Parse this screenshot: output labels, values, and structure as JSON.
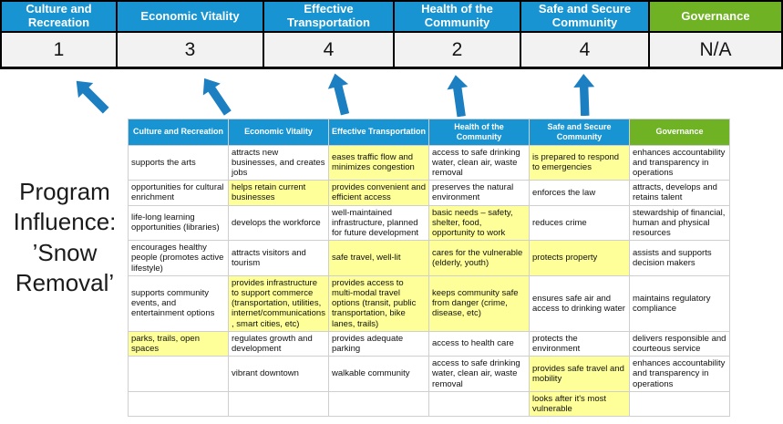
{
  "slide": {
    "title_lines": [
      "Program",
      "Influence:",
      "’Snow",
      "Removal’"
    ]
  },
  "scoreboard": {
    "columns": [
      {
        "label": "Culture and Recreation",
        "score": "1"
      },
      {
        "label": "Economic Vitality",
        "score": "3"
      },
      {
        "label": "Effective Transportation",
        "score": "4"
      },
      {
        "label": "Health of the Community",
        "score": "2"
      },
      {
        "label": "Safe and Secure Community",
        "score": "4"
      },
      {
        "label": "Governance",
        "score": "N/A"
      }
    ]
  },
  "matrix": {
    "headers": [
      "Culture and Recreation",
      "Economic Vitality",
      "Effective Transportation",
      "Health of the Community",
      "Safe and Secure Community",
      "Governance"
    ],
    "rows": [
      [
        {
          "text": "supports the arts",
          "highlight": false
        },
        {
          "text": "attracts new businesses, and creates jobs",
          "highlight": false
        },
        {
          "text": "eases traffic flow and minimizes congestion",
          "highlight": true
        },
        {
          "text": "access to safe drinking water, clean air, waste removal",
          "highlight": false
        },
        {
          "text": "is prepared to respond to emergencies",
          "highlight": true
        },
        {
          "text": "enhances accountability and transparency in operations",
          "highlight": false
        }
      ],
      [
        {
          "text": "opportunities for cultural enrichment",
          "highlight": false
        },
        {
          "text": "helps retain current businesses",
          "highlight": true
        },
        {
          "text": "provides convenient and efficient access",
          "highlight": true
        },
        {
          "text": "preserves the natural environment",
          "highlight": false
        },
        {
          "text": "enforces the law",
          "highlight": false
        },
        {
          "text": "attracts, develops and retains talent",
          "highlight": false
        }
      ],
      [
        {
          "text": "life-long learning opportunities (libraries)",
          "highlight": false
        },
        {
          "text": "develops the workforce",
          "highlight": false
        },
        {
          "text": "well-maintained infrastructure, planned for future development",
          "highlight": false
        },
        {
          "text": "basic needs – safety, shelter, food, opportunity to work",
          "highlight": true
        },
        {
          "text": "reduces crime",
          "highlight": false
        },
        {
          "text": "stewardship of financial, human and physical resources",
          "highlight": false
        }
      ],
      [
        {
          "text": "encourages healthy people (promotes active lifestyle)",
          "highlight": false
        },
        {
          "text": "attracts visitors and tourism",
          "highlight": false
        },
        {
          "text": "safe travel, well-lit",
          "highlight": true
        },
        {
          "text": "cares for the vulnerable (elderly, youth)",
          "highlight": true
        },
        {
          "text": "protects property",
          "highlight": true
        },
        {
          "text": "assists and supports decision makers",
          "highlight": false
        }
      ],
      [
        {
          "text": "supports community events, and entertainment options",
          "highlight": false
        },
        {
          "text": "provides infrastructure to support commerce (transportation, utilities, internet/communications, smart cities, etc)",
          "highlight": true
        },
        {
          "text": "provides access to multi-modal travel options (transit, public transportation, bike lanes, trails)",
          "highlight": true
        },
        {
          "text": "keeps community safe from danger (crime, disease, etc)",
          "highlight": true
        },
        {
          "text": "ensures safe air and access to drinking water",
          "highlight": false
        },
        {
          "text": "maintains regulatory compliance",
          "highlight": false
        }
      ],
      [
        {
          "text": "parks, trails, open spaces",
          "highlight": true
        },
        {
          "text": "regulates growth and development",
          "highlight": false
        },
        {
          "text": "provides adequate parking",
          "highlight": false
        },
        {
          "text": "access to health care",
          "highlight": false
        },
        {
          "text": "protects the environment",
          "highlight": false
        },
        {
          "text": "delivers responsible and courteous service",
          "highlight": false
        }
      ],
      [
        {
          "text": "",
          "highlight": false
        },
        {
          "text": "vibrant downtown",
          "highlight": false
        },
        {
          "text": "walkable community",
          "highlight": false
        },
        {
          "text": "access to safe drinking water, clean air, waste removal",
          "highlight": false
        },
        {
          "text": "provides safe travel and mobility",
          "highlight": true
        },
        {
          "text": "enhances accountability and transparency in operations",
          "highlight": false
        }
      ],
      [
        {
          "text": "",
          "highlight": false
        },
        {
          "text": "",
          "highlight": false
        },
        {
          "text": "",
          "highlight": false
        },
        {
          "text": "",
          "highlight": false
        },
        {
          "text": "looks after it's most vulnerable",
          "highlight": true
        },
        {
          "text": "",
          "highlight": false
        }
      ]
    ]
  },
  "colors": {
    "header_blue": "#1794d1",
    "header_green": "#6fb224",
    "highlight_yellow": "#ffff99",
    "arrow_blue": "#1c7fc2",
    "score_bg": "#f2f2f2",
    "grid_black": "#000000"
  }
}
